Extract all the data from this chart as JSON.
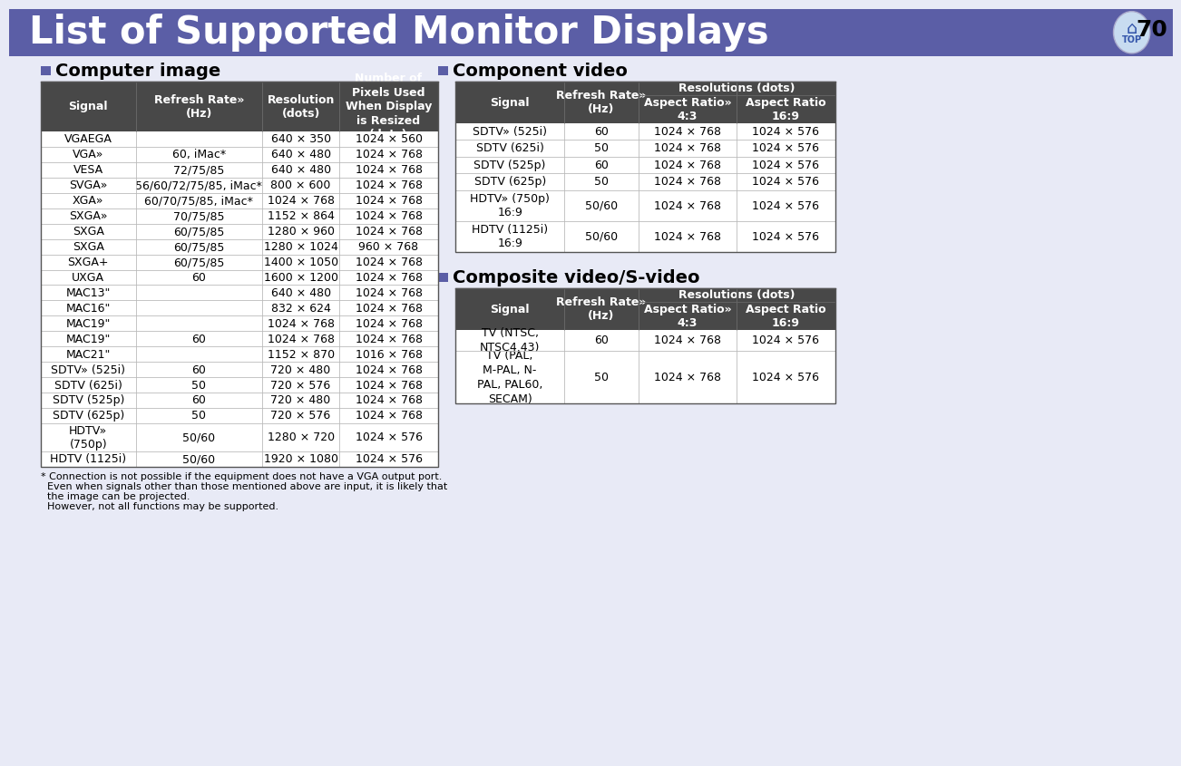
{
  "title": "List of Supported Monitor Displays",
  "page_num": "70",
  "header_bg": "#5B5EA6",
  "header_text_color": "#FFFFFF",
  "page_bg": "#E8EAF6",
  "table_header_bg": "#484848",
  "section_label_color": "#5B5EA6",
  "computer_col_headers": [
    "Signal",
    "Refresh Rate»\n(Hz)",
    "Resolution\n(dots)",
    "Number of\nPixels Used\nWhen Display\nis Resized\n(dots)"
  ],
  "computer_image_rows": [
    [
      "VGAEGA",
      "",
      "640 × 350",
      "1024 × 560"
    ],
    [
      "VGA»",
      "60, iMac*",
      "640 × 480",
      "1024 × 768"
    ],
    [
      "VESA",
      "72/75/85",
      "640 × 480",
      "1024 × 768"
    ],
    [
      "SVGA»",
      "56/60/72/75/85, iMac*",
      "800 × 600",
      "1024 × 768"
    ],
    [
      "XGA»",
      "60/70/75/85, iMac*",
      "1024 × 768",
      "1024 × 768"
    ],
    [
      "SXGA»",
      "70/75/85",
      "1152 × 864",
      "1024 × 768"
    ],
    [
      "SXGA",
      "60/75/85",
      "1280 × 960",
      "1024 × 768"
    ],
    [
      "SXGA",
      "60/75/85",
      "1280 × 1024",
      "960 × 768"
    ],
    [
      "SXGA+",
      "60/75/85",
      "1400 × 1050",
      "1024 × 768"
    ],
    [
      "UXGA",
      "60",
      "1600 × 1200",
      "1024 × 768"
    ],
    [
      "MAC13\"",
      "",
      "640 × 480",
      "1024 × 768"
    ],
    [
      "MAC16\"",
      "",
      "832 × 624",
      "1024 × 768"
    ],
    [
      "MAC19\"",
      "",
      "1024 × 768",
      "1024 × 768"
    ],
    [
      "MAC19\"",
      "60",
      "1024 × 768",
      "1024 × 768"
    ],
    [
      "MAC21\"",
      "",
      "1152 × 870",
      "1016 × 768"
    ],
    [
      "SDTV» (525i)",
      "60",
      "720 × 480",
      "1024 × 768"
    ],
    [
      "SDTV (625i)",
      "50",
      "720 × 576",
      "1024 × 768"
    ],
    [
      "SDTV (525p)",
      "60",
      "720 × 480",
      "1024 × 768"
    ],
    [
      "SDTV (625p)",
      "50",
      "720 × 576",
      "1024 × 768"
    ],
    [
      "HDTV»\n(750p)",
      "50/60",
      "1280 × 720",
      "1024 × 576"
    ],
    [
      "HDTV (1125i)",
      "50/60",
      "1920 × 1080",
      "1024 × 576"
    ]
  ],
  "computer_underline_rows": [
    1,
    3,
    4,
    5,
    15,
    19
  ],
  "component_col_headers": [
    "Signal",
    "Refresh Rate»\n(Hz)",
    "Aspect Ratio»\n4:3",
    "Aspect Ratio\n16:9"
  ],
  "component_rows": [
    [
      "SDTV» (525i)",
      "60",
      "1024 × 768",
      "1024 × 576"
    ],
    [
      "SDTV (625i)",
      "50",
      "1024 × 768",
      "1024 × 576"
    ],
    [
      "SDTV (525p)",
      "60",
      "1024 × 768",
      "1024 × 576"
    ],
    [
      "SDTV (625p)",
      "50",
      "1024 × 768",
      "1024 × 576"
    ],
    [
      "HDTV» (750p)\n16:9",
      "50/60",
      "1024 × 768",
      "1024 × 576"
    ],
    [
      "HDTV (1125i)\n16:9",
      "50/60",
      "1024 × 768",
      "1024 × 576"
    ]
  ],
  "composite_col_headers": [
    "Signal",
    "Refresh Rate»\n(Hz)",
    "Aspect Ratio»\n4:3",
    "Aspect Ratio\n16:9"
  ],
  "composite_rows": [
    [
      "TV (NTSC,\nNTSC4.43)",
      "60",
      "1024 × 768",
      "1024 × 576"
    ],
    [
      "TV (PAL,\nM-PAL, N-\nPAL, PAL60,\nSECAM)",
      "50",
      "1024 × 768",
      "1024 × 576"
    ]
  ],
  "footnote_lines": [
    "* Connection is not possible if the equipment does not have a VGA output port.",
    "  Even when signals other than those mentioned above are input, it is likely that",
    "  the image can be projected.",
    "  However, not all functions may be supported."
  ]
}
